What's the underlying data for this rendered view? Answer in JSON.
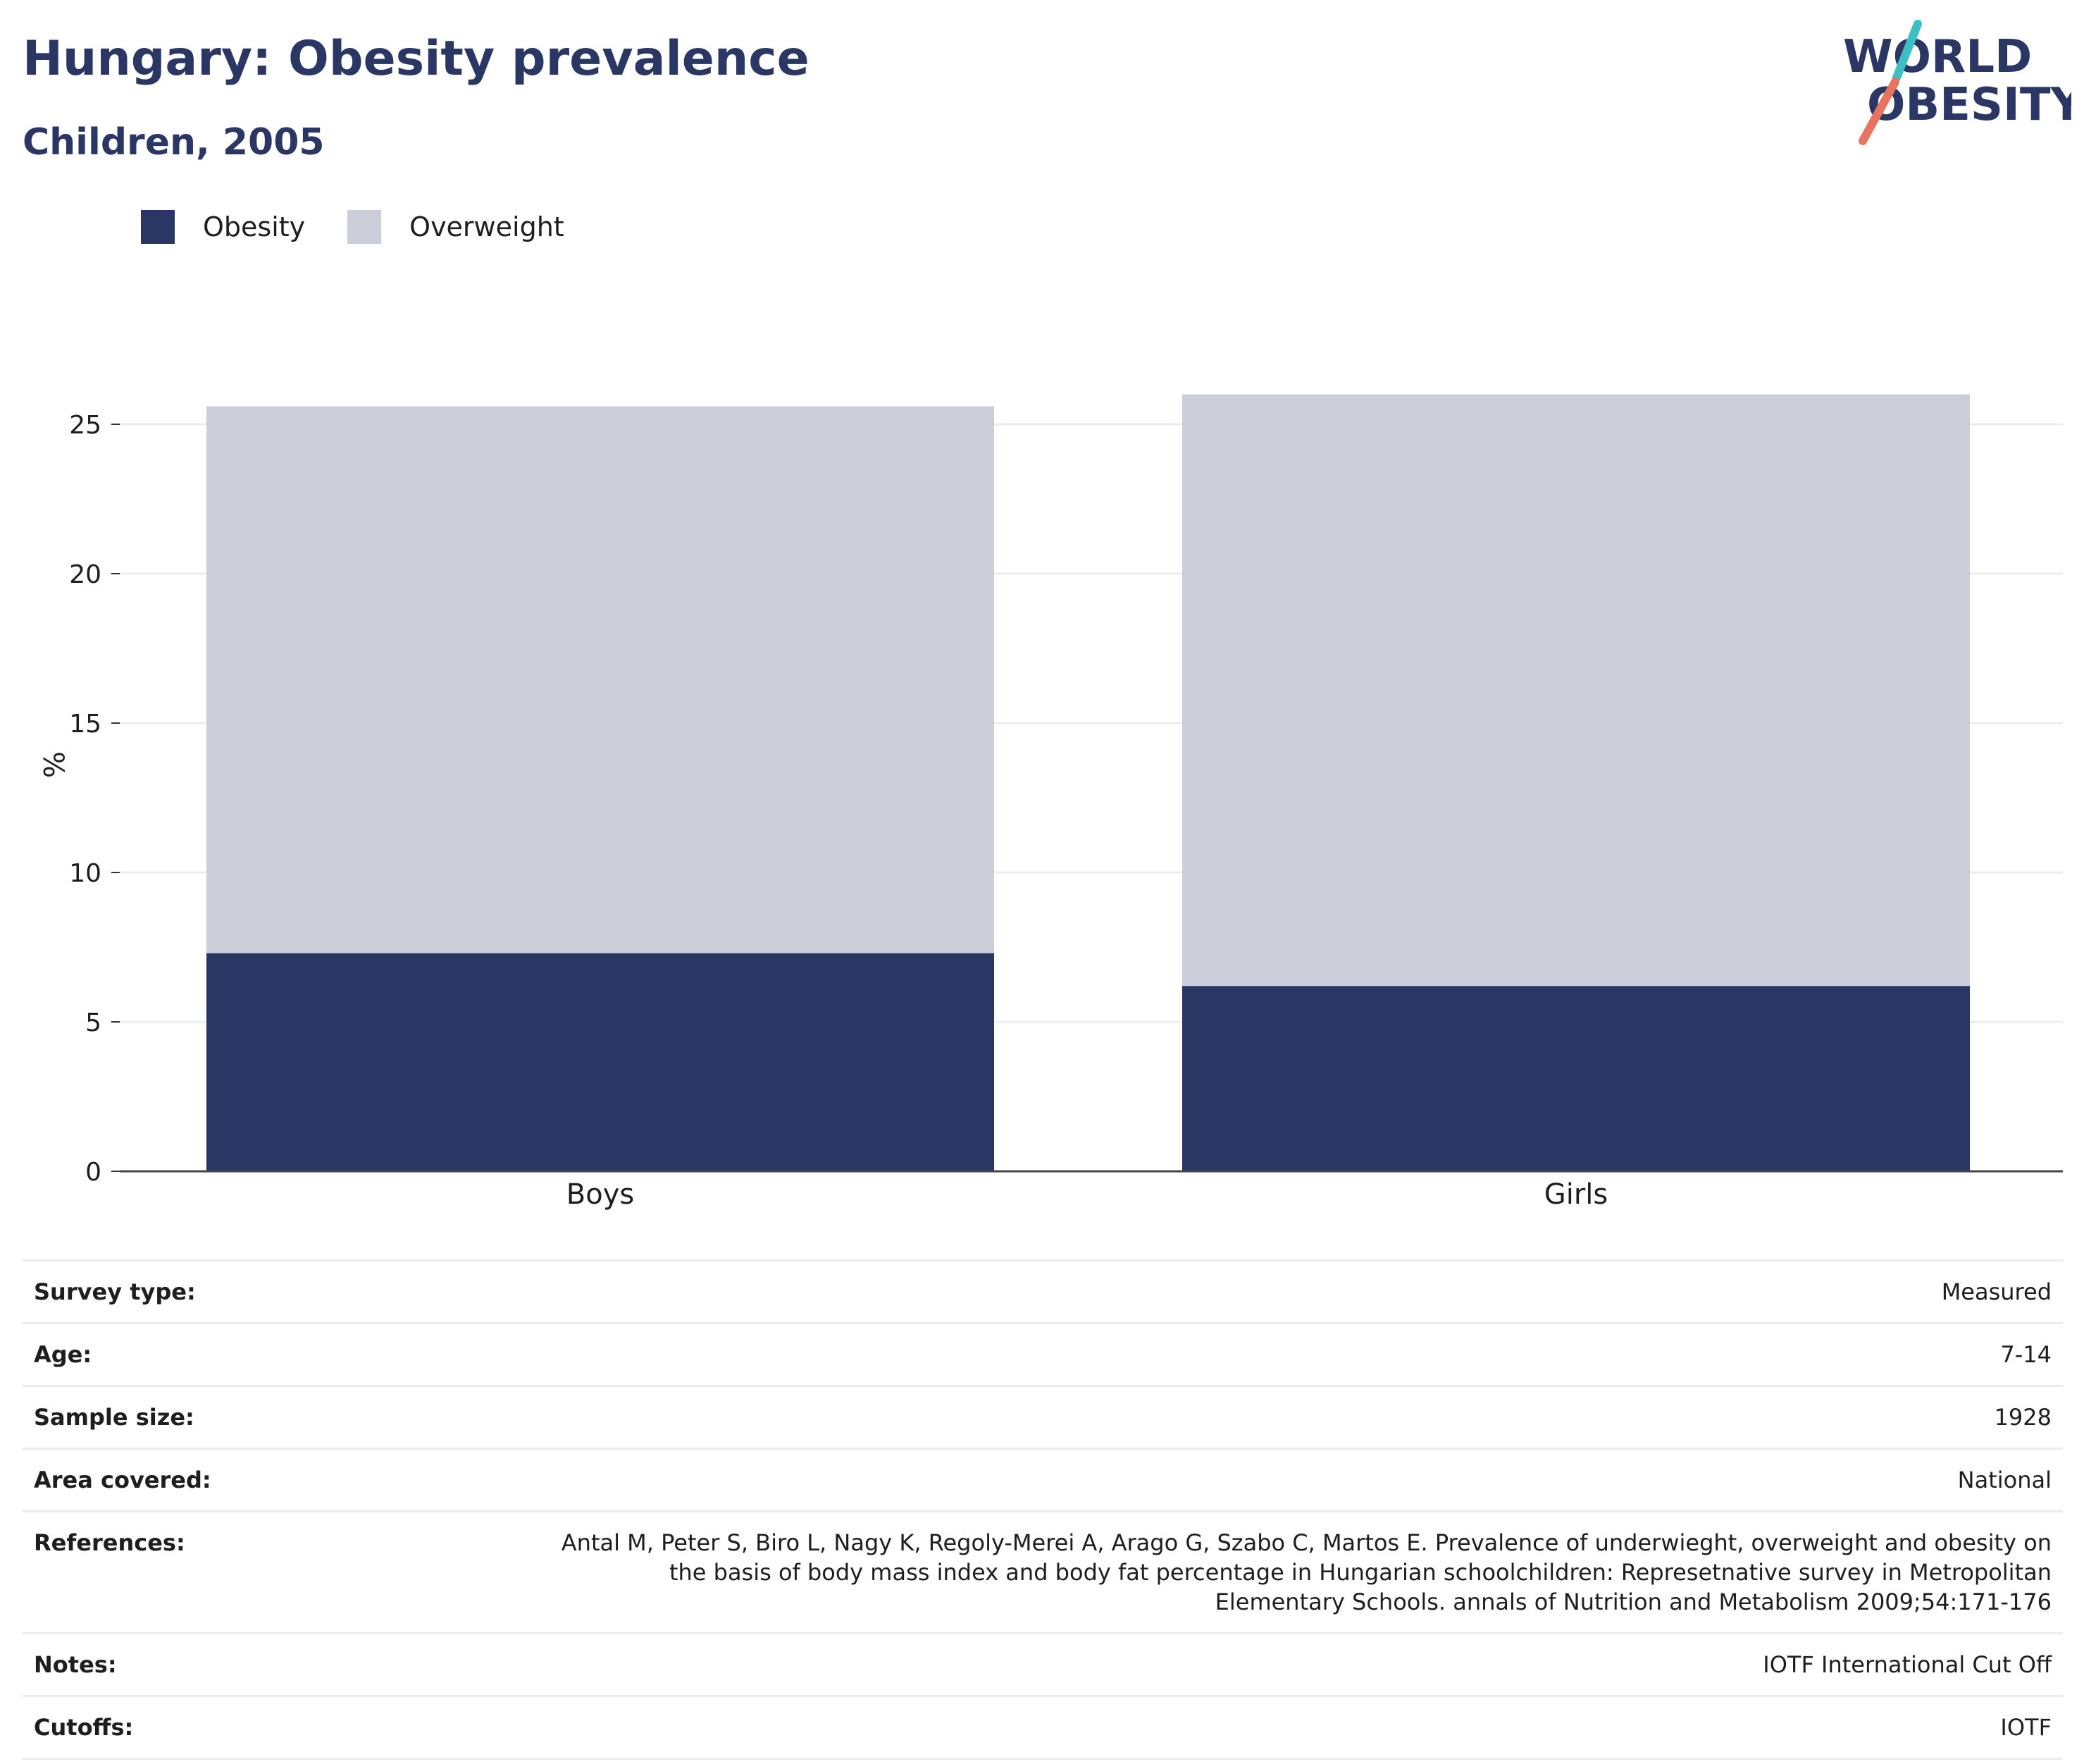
{
  "header": {
    "title": "Hungary: Obesity prevalence",
    "subtitle": "Children, 2005"
  },
  "logo": {
    "line1": "WORLD",
    "line2": "OBESITY",
    "colors": {
      "text": "#2a3764",
      "teal": "#3dbfc3",
      "coral": "#e8735f"
    }
  },
  "legend": [
    {
      "label": "Obesity",
      "color": "#2a3764"
    },
    {
      "label": "Overweight",
      "color": "#cbcdd9"
    }
  ],
  "chart_data": {
    "type": "bar",
    "stacked": true,
    "categories": [
      "Boys",
      "Girls"
    ],
    "series": [
      {
        "name": "Obesity",
        "values": [
          7.3,
          6.2
        ],
        "color": "#2a3764"
      },
      {
        "name": "Overweight",
        "values": [
          18.3,
          19.8
        ],
        "color": "#cbcdd9"
      }
    ],
    "ylabel": "%",
    "ylim": [
      0,
      25
    ],
    "yticks": [
      0,
      5,
      10,
      15,
      20,
      25
    ],
    "grid": true
  },
  "info": [
    {
      "key": "Survey type:",
      "value": "Measured"
    },
    {
      "key": "Age:",
      "value": "7-14"
    },
    {
      "key": "Sample size:",
      "value": "1928"
    },
    {
      "key": "Area covered:",
      "value": "National"
    },
    {
      "key": "References:",
      "value": "Antal M, Peter S, Biro L, Nagy K, Regoly-Merei A, Arago G, Szabo C, Martos E. Prevalence of underwieght, overweight and obesity on the basis of body mass index and body fat percentage in Hungarian schoolchildren: Represetnative survey in Metropolitan Elementary Schools. annals of Nutrition and Metabolism 2009;54:171-176"
    },
    {
      "key": "Notes:",
      "value": "IOTF International Cut Off"
    },
    {
      "key": "Cutoffs:",
      "value": "IOTF"
    }
  ]
}
